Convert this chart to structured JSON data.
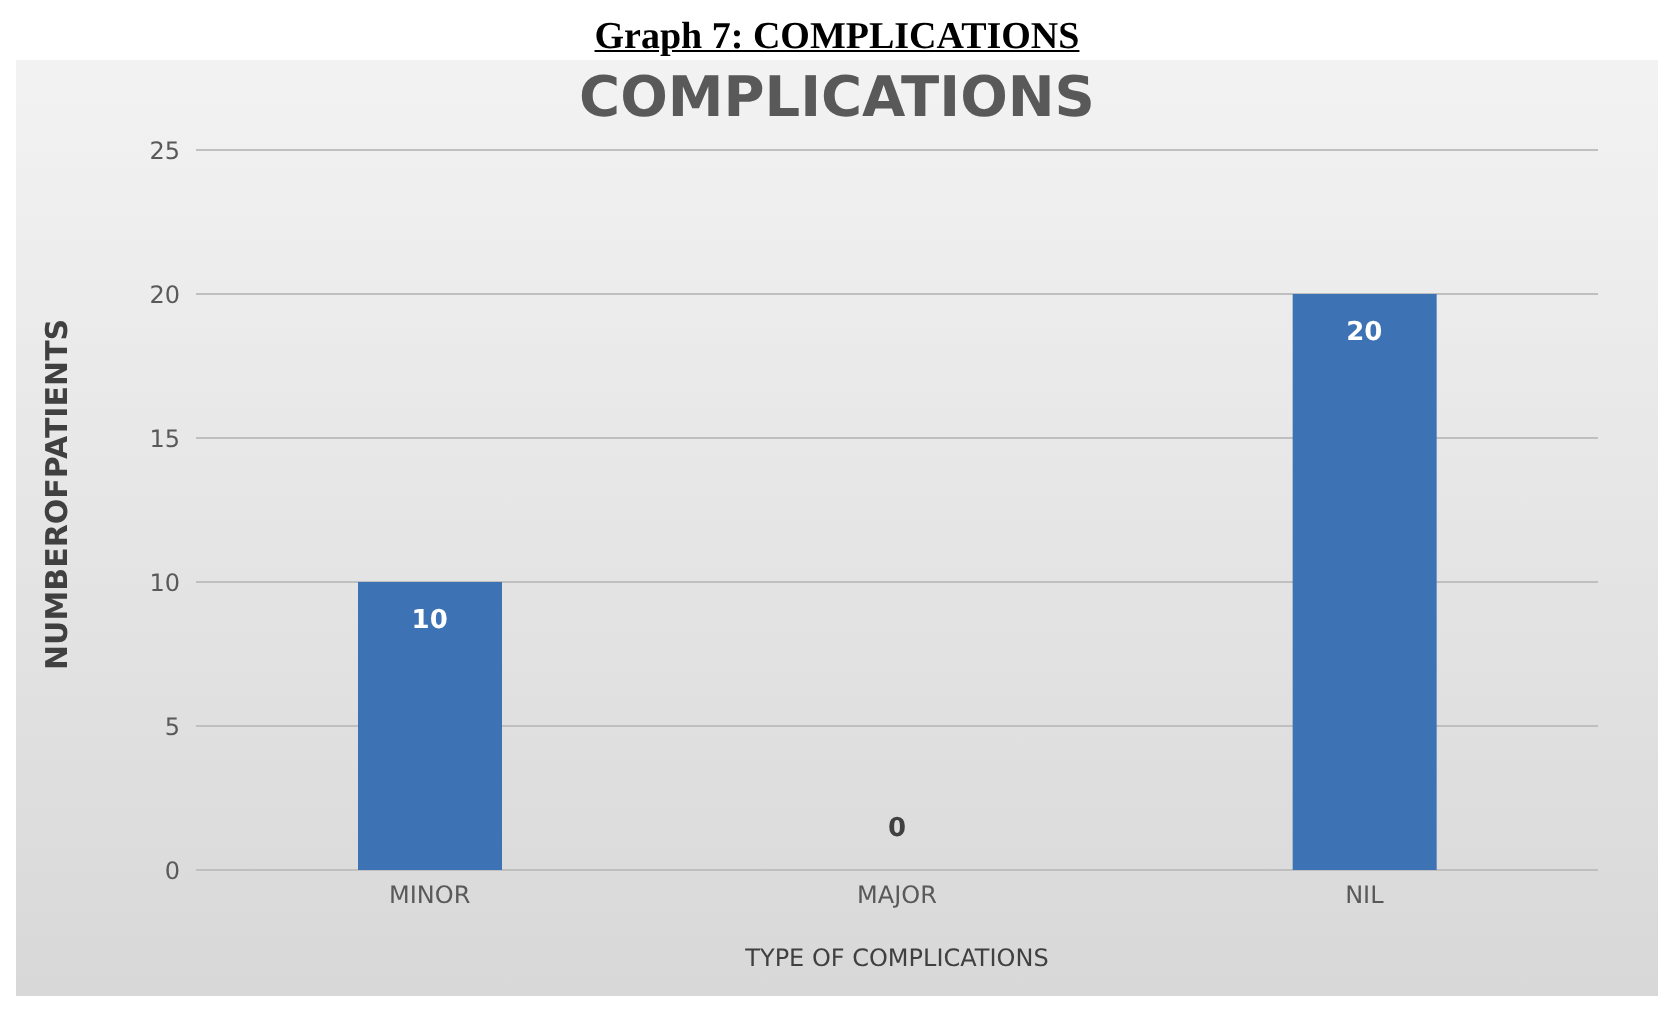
{
  "chart_data": {
    "type": "bar",
    "title": "Graph 7: COMPLICATIONS",
    "subtitle": "COMPLICATIONS",
    "xlabel": "TYPE OF COMPLICATIONS",
    "ylabel": "NUMBEROFPATIENTS",
    "categories": [
      "MINOR",
      "MAJOR",
      "NIL"
    ],
    "values": [
      10,
      0,
      20
    ],
    "color": "#3d72b4",
    "ylim": [
      0,
      25
    ],
    "yticks": [
      0,
      5,
      10,
      15,
      20,
      25
    ],
    "grid": "y",
    "data_labels": true
  }
}
